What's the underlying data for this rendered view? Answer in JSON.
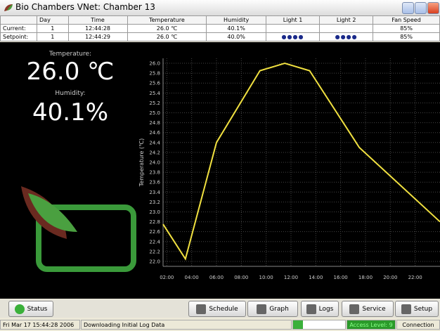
{
  "window": {
    "title": "Bio Chambers VNet: Chamber 13"
  },
  "table": {
    "header": [
      "Day",
      "Time",
      "Temperature",
      "Humidity",
      "Light 1",
      "Light 2",
      "Fan Speed"
    ],
    "rows": [
      {
        "label": "Current:",
        "cells": [
          "1",
          "12:44:28",
          "26.0 ℃",
          "40.1%",
          "",
          "",
          "85%"
        ]
      },
      {
        "label": "Setpoint:",
        "cells": [
          "1",
          "12:44:29",
          "26.0 ℃",
          "40.0%",
          "●●●●",
          "●●●●",
          "85%"
        ]
      }
    ]
  },
  "readout": {
    "temperature_label": "Temperature:",
    "temperature": "26.0 ℃",
    "humidity_label": "Humidity:",
    "humidity": "40.1%"
  },
  "chart_data": {
    "type": "line",
    "y_label": "Temperature (℃)",
    "x": [
      1.7,
      3.5,
      6,
      9.5,
      11.5,
      13.5,
      17.5,
      24
    ],
    "values": [
      22.75,
      22.05,
      24.4,
      25.85,
      26.0,
      25.85,
      24.3,
      22.8
    ],
    "color": "#f0e040",
    "xlim": [
      1.7,
      24
    ],
    "xticks": [
      {
        "value": 2,
        "label": "02:00"
      },
      {
        "value": 4,
        "label": "04:00"
      },
      {
        "value": 6,
        "label": "06:00"
      },
      {
        "value": 8,
        "label": "08:00"
      },
      {
        "value": 10,
        "label": "10:00"
      },
      {
        "value": 12,
        "label": "12:00"
      },
      {
        "value": 14,
        "label": "14:00"
      },
      {
        "value": 16,
        "label": "16:00"
      },
      {
        "value": 18,
        "label": "18:00"
      },
      {
        "value": 20,
        "label": "20:00"
      },
      {
        "value": 22,
        "label": "22:00"
      }
    ],
    "ylim": [
      21.9,
      26.1
    ],
    "yticks": [
      {
        "value": 22,
        "label": "22.0"
      },
      22.2,
      22.4,
      22.6,
      22.8,
      {
        "value": 23,
        "label": "23.0"
      },
      23.2,
      23.4,
      23.6,
      23.8,
      {
        "value": 24,
        "label": "24.0"
      },
      24.2,
      24.4,
      24.6,
      24.8,
      {
        "value": 25,
        "label": "25.0"
      },
      25.2,
      25.4,
      25.6,
      25.8,
      {
        "value": 26,
        "label": "26.0"
      }
    ],
    "grid": true
  },
  "buttons": [
    "Status",
    "Schedule",
    "Graph",
    "Logs",
    "Service",
    "Setup"
  ],
  "status_bar": {
    "datetime": "Fri Mar 17 15:44:28 2006",
    "message": "Downloading Initial Log Data",
    "access": "Access Level: 9",
    "connection": "Connection"
  }
}
